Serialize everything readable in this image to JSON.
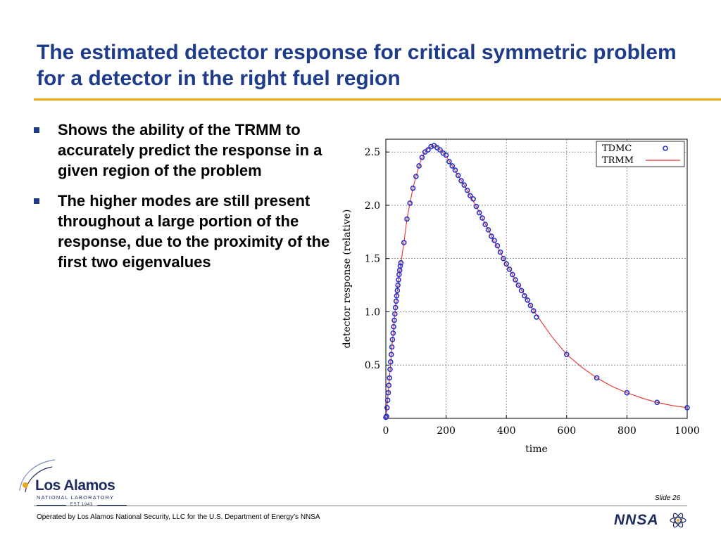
{
  "slide": {
    "title": "The estimated detector response for critical symmetric problem for a detector in the right fuel region",
    "bullets": [
      "Shows the ability of the TRMM to accurately predict the response in a given region of the problem",
      "The higher modes are still present throughout a large portion of the response, due to the proximity of the first two eigenvalues"
    ],
    "slide_number": "Slide 26",
    "footer": "Operated by Los Alamos National Security, LLC for the U.S. Department of Energy’s NNSA",
    "accent_color": "#1f3c8a",
    "rule_color": "#e8a91f"
  },
  "logo": {
    "name": "Los Alamos",
    "sub": "NATIONAL LABORATORY",
    "est": "EST.1943",
    "partner": "NNSA"
  },
  "chart_data": {
    "type": "scatter",
    "xlabel": "time",
    "ylabel": "detector response (relative)",
    "xlim": [
      0,
      1000
    ],
    "ylim": [
      0,
      2.62
    ],
    "xticks": [
      0,
      200,
      400,
      600,
      800,
      1000
    ],
    "yticks": [
      0.5,
      1.0,
      1.5,
      2.0,
      2.5
    ],
    "ytick_labels": [
      "0.5",
      "1.0",
      "1.5",
      "2.0",
      "2.5"
    ],
    "grid": true,
    "legend_position": "top-right",
    "series": [
      {
        "name": "TDMC",
        "style": "markers",
        "color": "#2233cc",
        "x": [
          0,
          2,
          4,
          6,
          8,
          10,
          12,
          14,
          16,
          18,
          20,
          22,
          24,
          26,
          28,
          30,
          32,
          34,
          36,
          38,
          40,
          42,
          44,
          46,
          48,
          50,
          60,
          70,
          80,
          90,
          100,
          110,
          120,
          130,
          140,
          150,
          160,
          170,
          180,
          190,
          200,
          210,
          220,
          230,
          240,
          250,
          260,
          270,
          280,
          290,
          300,
          310,
          320,
          330,
          340,
          350,
          360,
          370,
          380,
          390,
          400,
          410,
          420,
          430,
          440,
          450,
          460,
          470,
          480,
          490,
          500,
          600,
          700,
          800,
          900,
          1000
        ],
        "y": [
          0.01,
          0.02,
          0.1,
          0.17,
          0.24,
          0.31,
          0.38,
          0.46,
          0.53,
          0.6,
          0.67,
          0.74,
          0.8,
          0.86,
          0.92,
          0.98,
          1.04,
          1.1,
          1.15,
          1.2,
          1.25,
          1.3,
          1.35,
          1.39,
          1.43,
          1.46,
          1.65,
          1.87,
          2.02,
          2.16,
          2.27,
          2.37,
          2.45,
          2.5,
          2.52,
          2.55,
          2.56,
          2.54,
          2.52,
          2.49,
          2.47,
          2.41,
          2.37,
          2.33,
          2.28,
          2.23,
          2.19,
          2.14,
          2.09,
          2.06,
          1.99,
          1.93,
          1.88,
          1.82,
          1.77,
          1.71,
          1.67,
          1.62,
          1.56,
          1.5,
          1.45,
          1.4,
          1.35,
          1.3,
          1.25,
          1.2,
          1.15,
          1.11,
          1.06,
          1.01,
          0.95,
          0.6,
          0.38,
          0.24,
          0.15,
          0.1
        ]
      },
      {
        "name": "TRMM",
        "style": "line",
        "color": "#e8322c",
        "x": [
          0,
          5,
          10,
          20,
          30,
          40,
          50,
          60,
          70,
          80,
          90,
          100,
          110,
          120,
          130,
          140,
          150,
          160,
          170,
          180,
          190,
          200,
          220,
          240,
          260,
          280,
          300,
          320,
          340,
          360,
          380,
          400,
          420,
          440,
          460,
          480,
          500,
          550,
          600,
          650,
          700,
          750,
          800,
          850,
          900,
          950,
          1000
        ],
        "y": [
          0.0,
          0.15,
          0.31,
          0.67,
          0.98,
          1.25,
          1.46,
          1.65,
          1.87,
          2.02,
          2.16,
          2.27,
          2.37,
          2.45,
          2.5,
          2.53,
          2.55,
          2.56,
          2.55,
          2.52,
          2.49,
          2.46,
          2.37,
          2.28,
          2.19,
          2.09,
          1.99,
          1.88,
          1.77,
          1.66,
          1.56,
          1.45,
          1.35,
          1.25,
          1.16,
          1.06,
          0.97,
          0.77,
          0.6,
          0.48,
          0.38,
          0.3,
          0.24,
          0.19,
          0.15,
          0.12,
          0.1
        ]
      }
    ]
  }
}
